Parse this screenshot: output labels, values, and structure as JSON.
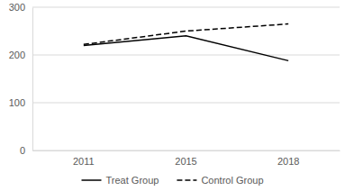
{
  "chart_data": {
    "type": "line",
    "categories": [
      "2011",
      "2015",
      "2018"
    ],
    "series": [
      {
        "name": "Treat Group",
        "color": "#000000",
        "line_style": "solid",
        "values": [
          220,
          240,
          188
        ]
      },
      {
        "name": "Control Group",
        "color": "#000000",
        "line_style": "dashed",
        "values": [
          222,
          250,
          265
        ]
      }
    ],
    "ylim": [
      0,
      300
    ],
    "yticks": [
      0,
      100,
      200,
      300
    ],
    "grid": true,
    "legend": "bottom"
  }
}
